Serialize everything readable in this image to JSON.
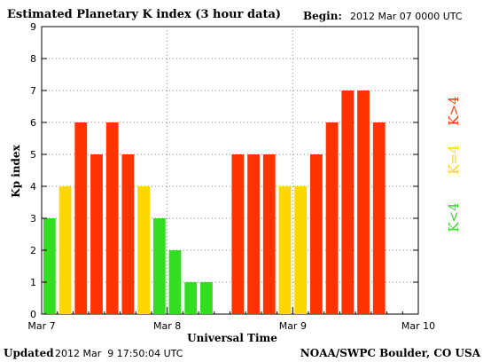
{
  "header": {
    "title": "Estimated Planetary K index (3 hour data)",
    "begin_label": "Begin:",
    "begin_value": "2012 Mar 07 0000 UTC"
  },
  "footer": {
    "updated_label": "Updated",
    "updated_value": "2012 Mar  9 17:50:04 UTC",
    "credit": "NOAA/SWPC Boulder, CO USA"
  },
  "chart_data": {
    "type": "bar",
    "title": "Estimated Planetary K index (3 hour data)",
    "xlabel": "Universal Time",
    "ylabel": "Kp index",
    "ylim": [
      0,
      9
    ],
    "yticks": [
      "0",
      "1",
      "2",
      "3",
      "4",
      "5",
      "6",
      "7",
      "8",
      "9"
    ],
    "xticks": [
      "Mar 7",
      "Mar 8",
      "Mar 9",
      "Mar 10"
    ],
    "grid": true,
    "interval_hours": 3,
    "values": [
      3,
      4,
      6,
      5,
      6,
      5,
      4,
      3,
      2,
      1,
      1,
      null,
      5,
      5,
      5,
      4,
      4,
      5,
      6,
      7,
      7,
      6
    ],
    "colors": {
      "low": "#33dd22",
      "mid": "#ffd700",
      "high": "#ff3300"
    },
    "legend": [
      {
        "label": "K<4",
        "color": "#33dd22"
      },
      {
        "label": "K=4",
        "color": "#ffd700"
      },
      {
        "label": "K>4",
        "color": "#ff3300"
      }
    ]
  }
}
